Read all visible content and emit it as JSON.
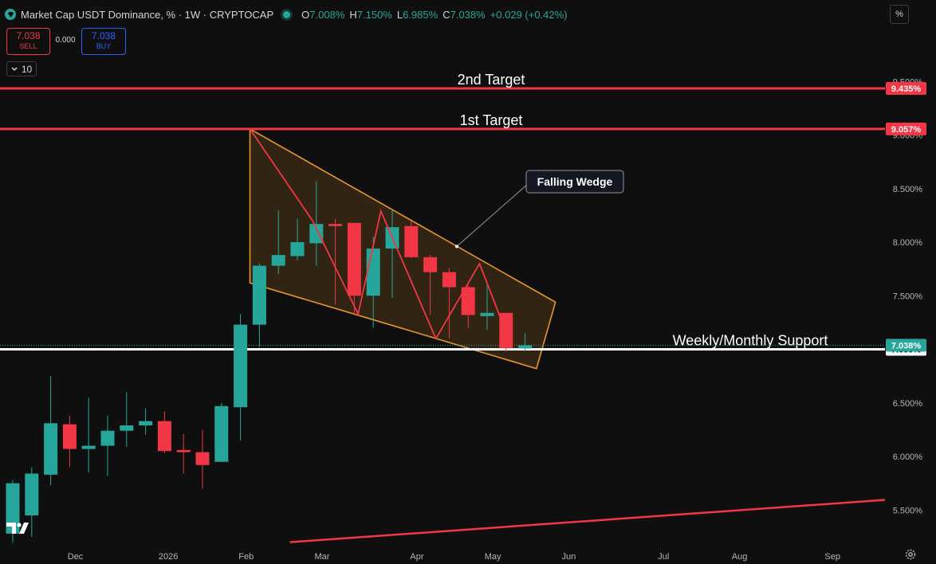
{
  "header": {
    "title": "Market Cap USDT Dominance, % · 1W · CRYPTOCAP",
    "o_label": "O",
    "o_value": "7.008%",
    "h_label": "H",
    "h_value": "7.150%",
    "l_label": "L",
    "l_value": "6.985%",
    "c_label": "C",
    "c_value": "7.038%",
    "change": "+0.029 (+0.42%)"
  },
  "trade": {
    "sell_price": "7.038",
    "sell_label": "SELL",
    "spread": "0.000",
    "buy_price": "7.038",
    "buy_label": "BUY"
  },
  "interval_value": "10",
  "scale_mode": "%",
  "colors": {
    "up": "#26a69a",
    "down": "#f23645",
    "background": "#0f0f0f",
    "wedge": "#e8952a"
  },
  "icons": [
    "logo-icon",
    "chevron-down-icon",
    "settings-gear-icon",
    "tradingview-logo-icon"
  ],
  "chart_data": {
    "type": "candlestick",
    "title": "Market Cap USDT Dominance, % · 1W · CRYPTOCAP",
    "x_ticks": [
      "Dec",
      "2026",
      "Feb",
      "Mar",
      "Apr",
      "May",
      "Jun",
      "Jul",
      "Aug",
      "Sep"
    ],
    "y_ticks": [
      "5.500%",
      "6.000%",
      "6.500%",
      "7.000%",
      "7.500%",
      "8.000%",
      "8.500%",
      "9.000%",
      "9.500%"
    ],
    "ylim": [
      5.2,
      9.75
    ],
    "x_tick_weeks": [
      3.3,
      8.2,
      12.3,
      16.3,
      21.3,
      25.3,
      29.3,
      34.3,
      38.3,
      43.2
    ],
    "candles": [
      {
        "w": 0,
        "o": 5.28,
        "h": 5.78,
        "l": 5.2,
        "c": 5.75
      },
      {
        "w": 1,
        "o": 5.45,
        "h": 5.9,
        "l": 5.25,
        "c": 5.84
      },
      {
        "w": 2,
        "o": 5.83,
        "h": 6.75,
        "l": 5.73,
        "c": 6.31
      },
      {
        "w": 3,
        "o": 6.3,
        "h": 6.38,
        "l": 5.9,
        "c": 6.07
      },
      {
        "w": 4,
        "o": 6.07,
        "h": 6.55,
        "l": 5.85,
        "c": 6.1
      },
      {
        "w": 5,
        "o": 6.1,
        "h": 6.38,
        "l": 5.82,
        "c": 6.24
      },
      {
        "w": 6,
        "o": 6.24,
        "h": 6.6,
        "l": 6.09,
        "c": 6.29
      },
      {
        "w": 7,
        "o": 6.29,
        "h": 6.45,
        "l": 6.2,
        "c": 6.33
      },
      {
        "w": 8,
        "o": 6.33,
        "h": 6.42,
        "l": 6.03,
        "c": 6.05
      },
      {
        "w": 9,
        "o": 6.06,
        "h": 6.21,
        "l": 5.84,
        "c": 6.04
      },
      {
        "w": 10,
        "o": 6.04,
        "h": 6.25,
        "l": 5.7,
        "c": 5.92
      },
      {
        "w": 11,
        "o": 5.95,
        "h": 6.5,
        "l": 5.95,
        "c": 6.47
      },
      {
        "w": 12,
        "o": 6.46,
        "h": 7.33,
        "l": 6.15,
        "c": 7.23
      },
      {
        "w": 13,
        "o": 7.23,
        "h": 7.8,
        "l": 7.02,
        "c": 7.78
      },
      {
        "w": 14,
        "o": 7.78,
        "h": 8.3,
        "l": 7.7,
        "c": 7.88
      },
      {
        "w": 15,
        "o": 7.87,
        "h": 8.22,
        "l": 7.83,
        "c": 8.0
      },
      {
        "w": 16,
        "o": 7.99,
        "h": 8.57,
        "l": 7.78,
        "c": 8.17
      },
      {
        "w": 17,
        "o": 8.17,
        "h": 8.22,
        "l": 7.42,
        "c": 8.15
      },
      {
        "w": 18,
        "o": 8.18,
        "h": 8.18,
        "l": 7.32,
        "c": 7.5
      },
      {
        "w": 19,
        "o": 7.5,
        "h": 8.05,
        "l": 7.2,
        "c": 7.94
      },
      {
        "w": 20,
        "o": 7.94,
        "h": 8.3,
        "l": 7.48,
        "c": 8.14
      },
      {
        "w": 21,
        "o": 8.15,
        "h": 8.2,
        "l": 7.85,
        "c": 7.86
      },
      {
        "w": 22,
        "o": 7.86,
        "h": 7.88,
        "l": 7.32,
        "c": 7.72
      },
      {
        "w": 23,
        "o": 7.72,
        "h": 7.76,
        "l": 7.1,
        "c": 7.58
      },
      {
        "w": 24,
        "o": 7.58,
        "h": 7.6,
        "l": 7.2,
        "c": 7.32
      },
      {
        "w": 25,
        "o": 7.31,
        "h": 7.62,
        "l": 7.18,
        "c": 7.34
      },
      {
        "w": 26,
        "o": 7.34,
        "h": 7.34,
        "l": 6.98,
        "c": 7.01
      },
      {
        "w": 27,
        "o": 7.008,
        "h": 7.15,
        "l": 6.985,
        "c": 7.038
      }
    ],
    "horizontal_levels": [
      {
        "label": "2nd Target",
        "value": 9.435,
        "tag": "9.435%",
        "color": "#f23645"
      },
      {
        "label": "1st Target",
        "value": 9.057,
        "tag": "9.057%",
        "color": "#f23645"
      },
      {
        "label": "Weekly/Monthly Support",
        "value": 7.0,
        "tag": "7.000%",
        "color": "#ffffff"
      }
    ],
    "last_price": {
      "value": 7.038,
      "tag": "7.038%",
      "color": "#26a69a"
    },
    "pattern": {
      "label": "Falling Wedge",
      "upper_line": [
        [
          12.5,
          9.057
        ],
        [
          28.6,
          7.44
        ]
      ],
      "lower_line": [
        [
          12.5,
          7.62
        ],
        [
          27.6,
          6.82
        ]
      ],
      "zigzag": [
        [
          12.5,
          9.057
        ],
        [
          15.8,
          8.2
        ],
        [
          18.2,
          7.33
        ],
        [
          19.4,
          8.29
        ],
        [
          22.3,
          7.1
        ],
        [
          24.6,
          7.8
        ],
        [
          26.3,
          7.02
        ]
      ]
    },
    "trendline": [
      [
        14.6,
        5.2
      ],
      [
        46.4,
        5.6
      ]
    ]
  }
}
